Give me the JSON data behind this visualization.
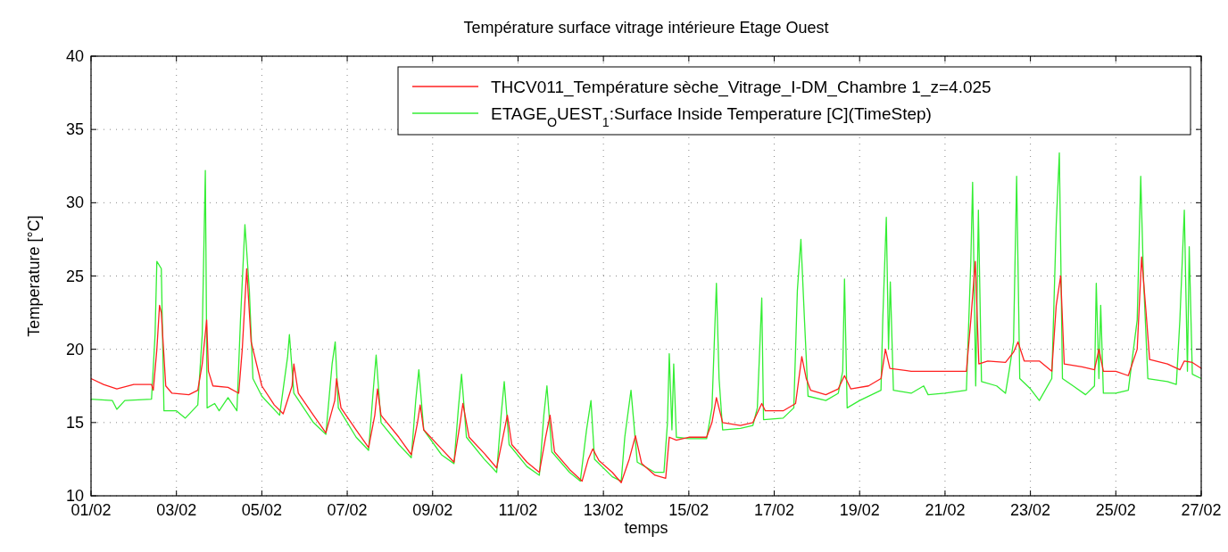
{
  "chart_data": {
    "type": "line",
    "title": "Température surface vitrage intérieure Etage Ouest",
    "xlabel": "temps",
    "ylabel": "Temperature [°C]",
    "xlim": [
      "--02-01",
      "--02-27"
    ],
    "xticks": [
      {
        "value": "--02-01",
        "label": "01/02"
      },
      {
        "value": "--02-03",
        "label": "03/02"
      },
      {
        "value": "--02-05",
        "label": "05/02"
      },
      {
        "value": "--02-07",
        "label": "07/02"
      },
      {
        "value": "--02-09",
        "label": "09/02"
      },
      {
        "value": "--02-11",
        "label": "11/02"
      },
      {
        "value": "--02-13",
        "label": "13/02"
      },
      {
        "value": "--02-15",
        "label": "15/02"
      },
      {
        "value": "--02-17",
        "label": "17/02"
      },
      {
        "value": "--02-19",
        "label": "19/02"
      },
      {
        "value": "--02-21",
        "label": "21/02"
      },
      {
        "value": "--02-23",
        "label": "23/02"
      },
      {
        "value": "--02-25",
        "label": "25/02"
      },
      {
        "value": "--02-27",
        "label": "27/02"
      }
    ],
    "ylim": [
      10,
      40
    ],
    "yticks": [
      10,
      15,
      20,
      25,
      30,
      35,
      40
    ],
    "grid": true,
    "legend": "top right",
    "line_style": "solid",
    "marker": "none",
    "series": [
      {
        "name": "THCV011_Température sèche_Vitrage_I-DM_Chambre 1_z=4.025",
        "color": "#ff2020",
        "x": [
          "--02-01T00:00",
          "--02-01T07:00",
          "--02-01T14:30",
          "--02-02T00:00",
          "--02-02T10:00",
          "--02-02T11:00",
          "--02-02T13:00",
          "--02-02T14:30",
          "--02-02T15:30",
          "--02-02T18:00",
          "--02-02T21:30",
          "--02-03T07:00",
          "--02-03T12:00",
          "--02-03T14:30",
          "--02-03T17:00",
          "--02-03T18:00",
          "--02-03T20:30",
          "--02-04T05:00",
          "--02-04T11:00",
          "--02-04T13:00",
          "--02-04T15:30",
          "--02-04T18:00",
          "--02-05T00:00",
          "--02-05T07:00",
          "--02-05T12:00",
          "--02-05T17:00",
          "--02-05T18:00",
          "--02-05T20:30",
          "--02-06T05:00",
          "--02-06T12:00",
          "--02-06T17:00",
          "--02-06T18:00",
          "--02-06T20:30",
          "--02-07T05:00",
          "--02-07T12:00",
          "--02-07T15:30",
          "--02-07T17:00",
          "--02-07T19:00",
          "--02-08T05:00",
          "--02-08T12:00",
          "--02-08T15:30",
          "--02-08T17:00",
          "--02-08T19:00",
          "--02-09T05:00",
          "--02-09T12:00",
          "--02-09T15:30",
          "--02-09T17:00",
          "--02-09T20:30",
          "--02-10T05:00",
          "--02-10T12:00",
          "--02-10T15:30",
          "--02-10T18:00",
          "--02-10T20:30",
          "--02-11T05:00",
          "--02-11T12:00",
          "--02-11T15:30",
          "--02-11T18:00",
          "--02-11T20:30",
          "--02-12T05:00",
          "--02-12T12:00",
          "--02-12T15:30",
          "--02-12T18:00",
          "--02-12T21:30",
          "--02-13T05:00",
          "--02-13T10:00",
          "--02-13T14:30",
          "--02-13T18:00",
          "--02-13T21:30",
          "--02-14T05:00",
          "--02-14T11:00",
          "--02-14T13:00",
          "--02-14T17:00",
          "--02-15T00:00",
          "--02-15T10:00",
          "--02-15T13:00",
          "--02-15T15:30",
          "--02-15T19:00",
          "--02-16T05:00",
          "--02-16T12:00",
          "--02-16T17:00",
          "--02-16T19:00",
          "--02-17T05:00",
          "--02-17T12:00",
          "--02-17T15:30",
          "--02-17T18:00",
          "--02-17T20:30",
          "--02-18T05:00",
          "--02-18T12:00",
          "--02-18T15:30",
          "--02-18T19:00",
          "--02-19T05:00",
          "--02-19T12:00",
          "--02-19T14:30",
          "--02-19T17:00",
          "--02-20T05:00",
          "--02-21T00:00",
          "--02-21T12:00",
          "--02-21T14:30",
          "--02-21T17:00",
          "--02-21T19:00",
          "--02-22T00:00",
          "--02-22T10:00",
          "--02-22T14:30",
          "--02-22T17:00",
          "--02-22T20:30",
          "--02-23T05:00",
          "--02-23T12:00",
          "--02-23T14:30",
          "--02-23T17:00",
          "--02-23T19:00",
          "--02-24T05:00",
          "--02-24T12:00",
          "--02-24T14:30",
          "--02-24T17:00",
          "--02-25T00:00",
          "--02-25T07:00",
          "--02-25T12:00",
          "--02-25T14:30",
          "--02-25T17:00",
          "--02-25T19:00",
          "--02-26T05:00",
          "--02-26T12:00",
          "--02-26T14:30",
          "--02-26T19:00",
          "--02-27T00:00"
        ],
        "values": [
          18.0,
          17.6,
          17.3,
          17.6,
          17.6,
          17.2,
          20,
          23,
          22.5,
          17.5,
          17.0,
          16.9,
          17.2,
          19,
          22,
          18.5,
          17.5,
          17.4,
          17.0,
          20,
          25.5,
          20.5,
          17.5,
          16.2,
          15.6,
          17.5,
          19.0,
          17,
          15.5,
          14.3,
          16.5,
          18.0,
          16.0,
          14.5,
          13.3,
          15.5,
          17.3,
          15.5,
          14.0,
          12.8,
          15,
          16.2,
          14.5,
          13.2,
          12.3,
          15,
          16.3,
          14,
          12.9,
          11.9,
          14,
          15.5,
          13.5,
          12.3,
          11.6,
          14,
          15.5,
          13,
          11.8,
          11.0,
          12.5,
          13.2,
          12.4,
          11.6,
          10.9,
          12.5,
          14.1,
          12.2,
          11.4,
          11.2,
          14.0,
          13.8,
          14.0,
          14.0,
          15,
          16.7,
          15.0,
          14.8,
          15.0,
          16.3,
          15.8,
          15.8,
          16.3,
          19.5,
          18,
          17.2,
          16.9,
          17.3,
          18.2,
          17.3,
          17.5,
          18.0,
          20,
          18.7,
          18.5,
          18.5,
          18.5,
          22,
          26,
          19,
          19.2,
          19.1,
          19.8,
          20.5,
          19.2,
          19.2,
          18.5,
          23,
          25,
          19,
          18.8,
          18.6,
          20,
          18.5,
          18.5,
          18.2,
          20,
          26.3,
          22.5,
          19.3,
          19,
          18.6,
          19.2,
          19.1,
          18.7
        ]
      },
      {
        "name": "ETAGE$_{O}$UEST$_{1}$:Surface Inside Temperature [C](TimeStep)",
        "color": "#33ee33",
        "x": [
          "--02-01T00:00",
          "--02-01T12:00",
          "--02-01T14:30",
          "--02-01T19:00",
          "--02-02T10:00",
          "--02-02T12:00",
          "--02-02T13:00",
          "--02-02T15:30",
          "--02-02T17:00",
          "--02-03T00:00",
          "--02-03T05:00",
          "--02-03T12:00",
          "--02-03T14:30",
          "--02-03T16:15",
          "--02-03T17:15",
          "--02-03T21:30",
          "--02-04T00:00",
          "--02-04T05:00",
          "--02-04T10:00",
          "--02-04T12:00",
          "--02-04T14:30",
          "--02-04T17:00",
          "--02-04T19:00",
          "--02-05T00:00",
          "--02-05T10:00",
          "--02-05T14:30",
          "--02-05T15:30",
          "--02-05T18:00",
          "--02-06T05:00",
          "--02-06T12:00",
          "--02-06T15:30",
          "--02-06T17:15",
          "--02-06T19:00",
          "--02-07T05:00",
          "--02-07T12:00",
          "--02-07T14:30",
          "--02-07T16:15",
          "--02-07T19:00",
          "--02-08T05:00",
          "--02-08T12:00",
          "--02-08T14:30",
          "--02-08T16:15",
          "--02-08T19:00",
          "--02-09T05:00",
          "--02-09T12:00",
          "--02-09T14:30",
          "--02-09T16:15",
          "--02-09T19:00",
          "--02-10T05:00",
          "--02-10T12:00",
          "--02-10T14:30",
          "--02-10T16:15",
          "--02-10T19:00",
          "--02-11T05:00",
          "--02-11T12:00",
          "--02-11T14:30",
          "--02-11T16:15",
          "--02-11T19:00",
          "--02-12T05:00",
          "--02-12T11:00",
          "--02-12T14:30",
          "--02-12T17:00",
          "--02-12T19:00",
          "--02-13T05:00",
          "--02-13T10:00",
          "--02-13T12:00",
          "--02-13T15:30",
          "--02-13T19:00",
          "--02-14T05:00",
          "--02-14T10:00",
          "--02-14T12:00",
          "--02-14T13:00",
          "--02-14T14:30",
          "--02-14T15:30",
          "--02-14T17:00",
          "--02-15T00:00",
          "--02-15T10:00",
          "--02-15T13:00",
          "--02-15T15:30",
          "--02-15T17:00",
          "--02-15T19:00",
          "--02-16T05:00",
          "--02-16T12:00",
          "--02-16T14:30",
          "--02-16T17:00",
          "--02-16T18:00",
          "--02-17T05:00",
          "--02-17T11:00",
          "--02-17T13:00",
          "--02-17T15:00",
          "--02-17T17:00",
          "--02-17T19:00",
          "--02-18T05:00",
          "--02-18T12:00",
          "--02-18T14:30",
          "--02-18T15:30",
          "--02-18T17:00",
          "--02-19T00:00",
          "--02-19T12:00",
          "--02-19T13:00",
          "--02-19T15:00",
          "--02-19T16:15",
          "--02-19T17:15",
          "--02-19T19:00",
          "--02-20T05:00",
          "--02-20T12:00",
          "--02-20T14:30",
          "--02-21T00:00",
          "--02-21T12:00",
          "--02-21T14:30",
          "--02-21T15:30",
          "--02-21T17:15",
          "--02-21T18:45",
          "--02-21T20:30",
          "--02-22T05:00",
          "--02-22T10:00",
          "--02-22T12:00",
          "--02-22T14:30",
          "--02-22T16:15",
          "--02-22T18:00",
          "--02-23T00:00",
          "--02-23T05:00",
          "--02-23T12:00",
          "--02-23T14:30",
          "--02-23T16:15",
          "--02-23T18:00",
          "--02-24T00:00",
          "--02-24T07:00",
          "--02-24T12:00",
          "--02-24T13:00",
          "--02-24T14:30",
          "--02-24T15:30",
          "--02-24T17:00",
          "--02-25T00:00",
          "--02-25T07:00",
          "--02-25T12:00",
          "--02-25T14:00",
          "--02-25T15:30",
          "--02-25T18:00",
          "--02-26T05:00",
          "--02-26T10:00",
          "--02-26T12:00",
          "--02-26T14:30",
          "--02-26T16:15",
          "--02-26T17:15",
          "--02-26T19:00",
          "--02-27T00:00"
        ],
        "values": [
          16.6,
          16.5,
          15.9,
          16.5,
          16.6,
          21,
          26,
          25.5,
          15.8,
          15.8,
          15.3,
          16.2,
          21,
          32.2,
          16,
          16.3,
          15.8,
          16.7,
          15.8,
          22,
          28.5,
          24,
          18,
          16.8,
          15.5,
          19.5,
          21,
          17,
          15,
          14.2,
          19,
          20.5,
          16,
          14,
          13.1,
          17,
          19.6,
          15,
          13.5,
          12.6,
          16.5,
          18.6,
          14.5,
          12.8,
          12.2,
          16,
          18.3,
          14,
          12.5,
          11.6,
          15.5,
          17.8,
          13.5,
          12,
          11.4,
          15.5,
          17.5,
          13,
          11.6,
          11.0,
          14.5,
          16.5,
          12.5,
          11.3,
          11.0,
          14,
          17.2,
          12.3,
          11.6,
          11.6,
          15,
          19.7,
          14.5,
          19,
          14,
          13.9,
          13.9,
          16,
          24.5,
          18,
          14.5,
          14.6,
          14.8,
          16,
          23.5,
          15.2,
          15.3,
          16,
          24,
          27.5,
          22,
          16.8,
          16.5,
          17.0,
          18.5,
          24.8,
          16,
          16.5,
          17.2,
          22,
          29,
          20,
          24.6,
          17.2,
          17.0,
          17.5,
          16.9,
          17.0,
          17.2,
          26,
          31.4,
          17.5,
          29.5,
          17.8,
          17.5,
          17.0,
          18.5,
          20.5,
          31.8,
          18,
          17.3,
          16.5,
          18,
          28.5,
          33.4,
          18,
          17.5,
          16.9,
          17.5,
          24.5,
          18,
          23,
          17,
          17,
          17.2,
          22,
          31.8,
          25,
          18,
          17.8,
          17.6,
          22,
          29.5,
          18.5,
          27,
          18.3,
          18.0
        ]
      }
    ]
  }
}
